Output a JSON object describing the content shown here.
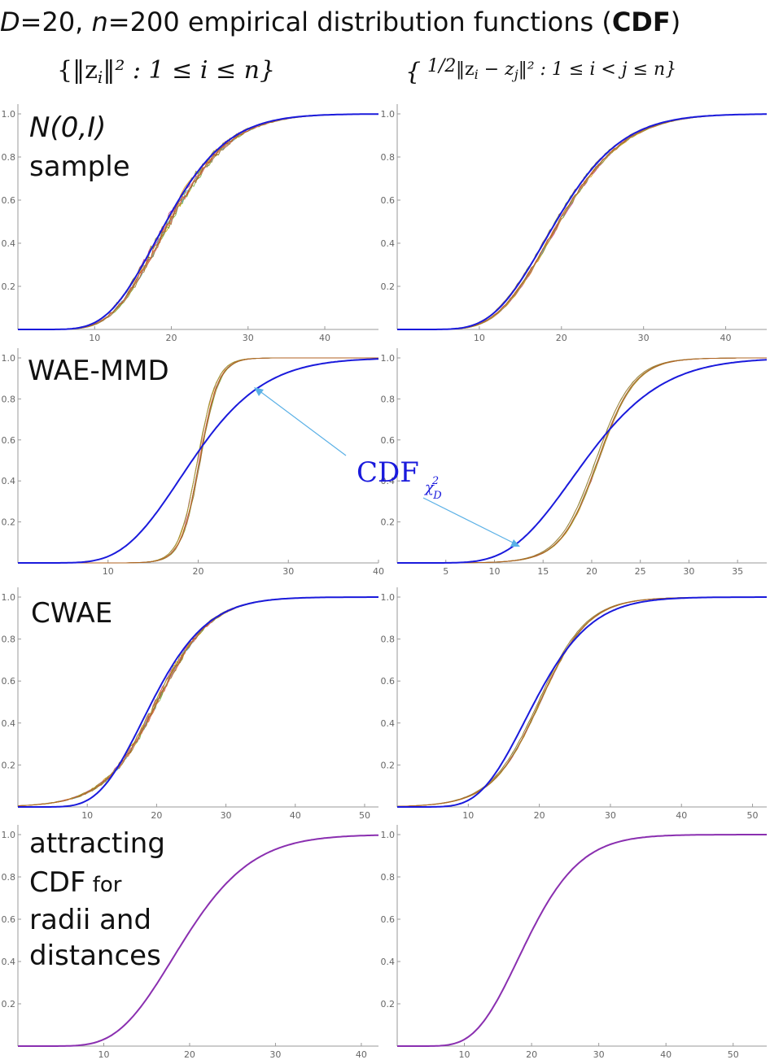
{
  "header": {
    "title_D": "D",
    "title_eq1": "=20, ",
    "title_n": "n",
    "title_eq2": "=200  empirical distribution functions (",
    "title_cdf": "CDF",
    "title_close": ")",
    "left_set": "{‖z",
    "left_sub": "i",
    "left_rest": "‖² : 1 ≤ i ≤ n}",
    "right_set_open": "{",
    "right_half": "1/2",
    "right_rest": "‖z",
    "right_sub_i": "i",
    "right_minus": " − z",
    "right_sub_j": "j",
    "right_tail": "‖² : 1 ≤ i < j ≤ n}"
  },
  "row_labels": {
    "r0_line1": "N(0,I)",
    "r0_line2": "sample",
    "r1": "WAE-MMD",
    "r2": "CWAE",
    "r3_line1": "attracting",
    "r3_line2": "CDF",
    "r3_line2b": " for",
    "r3_line3": "radii and",
    "r3_line4": "distances"
  },
  "annotation": {
    "text": "CDF",
    "sub": "χ",
    "sub2": "2",
    "subD": "D"
  },
  "colors": {
    "reference": "#1a1adc",
    "arrow": "#5ab0e6",
    "samples": [
      "#e6a020",
      "#c8b400",
      "#7fb03a",
      "#d96a3a",
      "#c04a8a",
      "#5ab0c8",
      "#a08040",
      "#e07070",
      "#9aa030",
      "#b06020"
    ]
  },
  "chart_data": [
    {
      "type": "line",
      "panel": "r0c0",
      "xlim": [
        0,
        47
      ],
      "ylim": [
        0,
        1
      ],
      "xticks": [
        "10",
        "20",
        "30",
        "40"
      ],
      "yticks": [
        "0.2",
        "0.4",
        "0.6",
        "0.8",
        "1.0"
      ],
      "reference": {
        "shift": 0,
        "scale": 1
      },
      "samples": {
        "shift": 0,
        "scale": 1,
        "jitter": 0.035
      }
    },
    {
      "type": "line",
      "panel": "r0c1",
      "xlim": [
        0,
        45
      ],
      "ylim": [
        0,
        1
      ],
      "xticks": [
        "10",
        "20",
        "30",
        "40"
      ],
      "yticks": [
        "0.2",
        "0.4",
        "0.6",
        "0.8",
        "1.0"
      ],
      "reference": {
        "shift": 0,
        "scale": 1
      },
      "samples": {
        "shift": 0,
        "scale": 1,
        "jitter": 0.015
      }
    },
    {
      "type": "line",
      "panel": "r1c0",
      "xlim": [
        0,
        40
      ],
      "ylim": [
        0,
        1
      ],
      "xticks": [
        "10",
        "20",
        "30",
        "40"
      ],
      "yticks": [
        "0.2",
        "0.4",
        "0.6",
        "0.8",
        "1.0"
      ],
      "reference": {
        "shift": 0,
        "scale": 1
      },
      "samples": {
        "center": 20,
        "width": 2.3,
        "jitter": 0.02
      }
    },
    {
      "type": "line",
      "panel": "r1c1",
      "xlim": [
        0,
        38
      ],
      "ylim": [
        0,
        1
      ],
      "xticks": [
        "5",
        "10",
        "15",
        "20",
        "25",
        "30",
        "35"
      ],
      "yticks": [
        "0.2",
        "0.4",
        "0.6",
        "0.8",
        "1.0"
      ],
      "reference": {
        "shift": 0,
        "scale": 1
      },
      "samples": {
        "center": 20.5,
        "width": 4.2,
        "jitter": 0.006
      }
    },
    {
      "type": "line",
      "panel": "r2c0",
      "xlim": [
        0,
        52
      ],
      "ylim": [
        0,
        1
      ],
      "xticks": [
        "10",
        "20",
        "30",
        "40",
        "50"
      ],
      "yticks": [
        "0.2",
        "0.4",
        "0.6",
        "0.8",
        "1.0"
      ],
      "reference": {
        "shift": 0,
        "scale": 1
      },
      "samples": {
        "center": 20,
        "width": 8.5,
        "jitter": 0.03
      }
    },
    {
      "type": "line",
      "panel": "r2c1",
      "xlim": [
        0,
        52
      ],
      "ylim": [
        0,
        1
      ],
      "xticks": [
        "10",
        "20",
        "30",
        "40",
        "50"
      ],
      "yticks": [
        "0.2",
        "0.4",
        "0.6",
        "0.8",
        "1.0"
      ],
      "reference": {
        "shift": 0,
        "scale": 1
      },
      "samples": {
        "center": 20,
        "width": 7.5,
        "jitter": 0.006
      }
    },
    {
      "type": "line",
      "panel": "r3c0",
      "xlim": [
        0,
        42
      ],
      "ylim": [
        0,
        1
      ],
      "xticks": [
        "10",
        "20",
        "30",
        "40"
      ],
      "yticks": [
        "0.2",
        "0.4",
        "0.6",
        "0.8",
        "1.0"
      ],
      "reference": {
        "shift": 0,
        "scale": 1,
        "color": "#8a2fb0"
      }
    },
    {
      "type": "line",
      "panel": "r3c1",
      "xlim": [
        0,
        55
      ],
      "ylim": [
        0,
        1
      ],
      "xticks": [
        "10",
        "20",
        "30",
        "40",
        "50"
      ],
      "yticks": [
        "0.2",
        "0.4",
        "0.6",
        "0.8",
        "1.0"
      ],
      "reference": {
        "shift": 0,
        "scale": 1,
        "color": "#8a2fb0"
      }
    }
  ]
}
